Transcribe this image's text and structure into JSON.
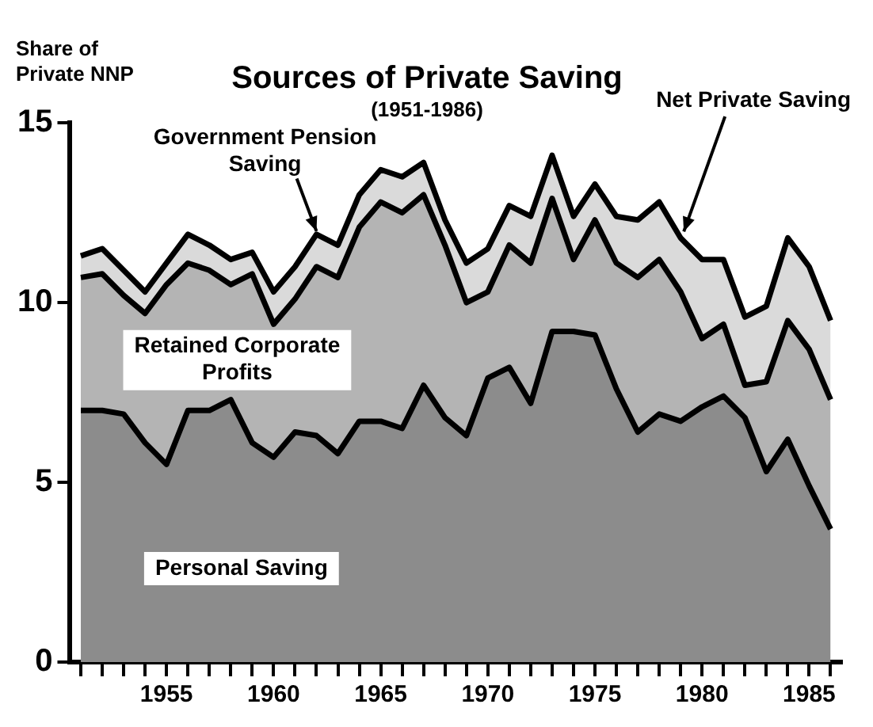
{
  "chart_data": {
    "type": "area",
    "title": "Sources of Private Saving",
    "subtitle": "(1951-1986)",
    "ylabel": "Share of Private NNP",
    "stacked": true,
    "legend": false,
    "grid": false,
    "x": [
      1951,
      1952,
      1953,
      1954,
      1955,
      1956,
      1957,
      1958,
      1959,
      1960,
      1961,
      1962,
      1963,
      1964,
      1965,
      1966,
      1967,
      1968,
      1969,
      1970,
      1971,
      1972,
      1973,
      1974,
      1975,
      1976,
      1977,
      1978,
      1979,
      1980,
      1981,
      1982,
      1983,
      1984,
      1985,
      1986
    ],
    "xlim": [
      1950.5,
      1986.5
    ],
    "xticks": [
      {
        "value": 1951,
        "label": null
      },
      {
        "value": 1952,
        "label": null
      },
      {
        "value": 1953,
        "label": null
      },
      {
        "value": 1954,
        "label": null
      },
      1955,
      {
        "value": 1956,
        "label": null
      },
      {
        "value": 1957,
        "label": null
      },
      {
        "value": 1958,
        "label": null
      },
      {
        "value": 1959,
        "label": null
      },
      1960,
      {
        "value": 1961,
        "label": null
      },
      {
        "value": 1962,
        "label": null
      },
      {
        "value": 1963,
        "label": null
      },
      {
        "value": 1964,
        "label": null
      },
      1965,
      {
        "value": 1966,
        "label": null
      },
      {
        "value": 1967,
        "label": null
      },
      {
        "value": 1968,
        "label": null
      },
      {
        "value": 1969,
        "label": null
      },
      1970,
      {
        "value": 1971,
        "label": null
      },
      {
        "value": 1972,
        "label": null
      },
      {
        "value": 1973,
        "label": null
      },
      {
        "value": 1974,
        "label": null
      },
      1975,
      {
        "value": 1976,
        "label": null
      },
      {
        "value": 1977,
        "label": null
      },
      {
        "value": 1978,
        "label": null
      },
      {
        "value": 1979,
        "label": null
      },
      1980,
      {
        "value": 1981,
        "label": null
      },
      {
        "value": 1982,
        "label": null
      },
      {
        "value": 1983,
        "label": null
      },
      {
        "value": 1984,
        "label": null
      },
      1985,
      {
        "value": 1986,
        "label": null
      }
    ],
    "ylim": [
      0,
      15
    ],
    "yticks": [
      0,
      5,
      10,
      15
    ],
    "series": [
      {
        "name": "Personal Saving",
        "color": "#8c8c8c",
        "values": [
          7.0,
          7.0,
          6.9,
          6.1,
          5.5,
          7.0,
          7.0,
          7.3,
          6.1,
          5.7,
          6.4,
          6.3,
          5.8,
          6.7,
          6.7,
          6.5,
          7.7,
          6.8,
          6.3,
          7.9,
          8.2,
          7.2,
          9.2,
          9.2,
          9.1,
          7.6,
          6.4,
          6.9,
          6.7,
          7.1,
          7.4,
          6.8,
          5.3,
          6.2,
          4.9,
          3.7
        ]
      },
      {
        "name": "Retained Corporate Profits",
        "color": "#b4b4b4",
        "values": [
          3.7,
          3.8,
          3.3,
          3.6,
          5.0,
          4.1,
          3.9,
          3.2,
          4.7,
          3.7,
          3.7,
          4.7,
          4.9,
          5.4,
          6.1,
          6.0,
          5.3,
          4.8,
          3.7,
          2.4,
          3.4,
          3.9,
          3.7,
          2.0,
          3.2,
          3.5,
          4.3,
          4.3,
          3.6,
          1.9,
          2.0,
          0.9,
          2.5,
          3.3,
          3.8,
          3.6
        ]
      },
      {
        "name": "Government Pension Saving",
        "color": "#dadada",
        "values": [
          0.6,
          0.7,
          0.7,
          0.6,
          0.6,
          0.8,
          0.7,
          0.7,
          0.6,
          0.9,
          0.9,
          0.9,
          0.9,
          0.9,
          0.9,
          1.0,
          0.9,
          0.7,
          1.1,
          1.2,
          1.1,
          1.3,
          1.2,
          1.2,
          1.0,
          1.3,
          1.6,
          1.6,
          1.5,
          2.2,
          1.8,
          1.9,
          2.1,
          2.3,
          2.3,
          2.2
        ]
      }
    ],
    "annotations": [
      {
        "text": "Net Private Saving",
        "x": 1979,
        "y": 11.8
      }
    ]
  }
}
